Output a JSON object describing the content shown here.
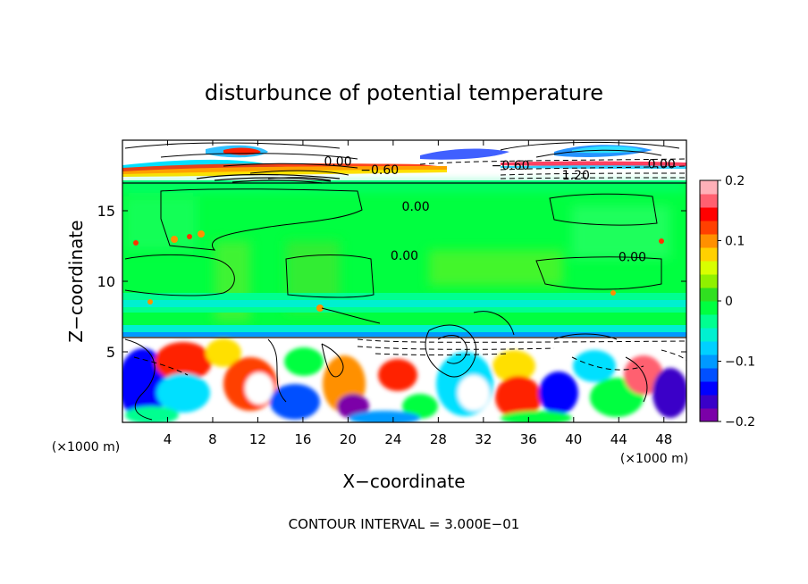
{
  "chart_data": {
    "type": "heatmap",
    "title": "disturbunce of potential temperature",
    "xlabel": "X−coordinate",
    "ylabel": "Z−coordinate",
    "x_unit": "(×1000 m)",
    "x_unit_right": "(×1000 m)",
    "xlim": [
      0,
      50
    ],
    "ylim": [
      0,
      20
    ],
    "x_ticks": [
      4,
      8,
      12,
      16,
      20,
      24,
      28,
      32,
      36,
      40,
      44,
      48
    ],
    "y_ticks": [
      5,
      10,
      15
    ],
    "colorbar": {
      "range": [
        -0.2,
        0.2
      ],
      "ticks": [
        {
          "value": 0.2,
          "label": "0.2"
        },
        {
          "value": 0.1,
          "label": "0.1"
        },
        {
          "value": 0,
          "label": "0"
        },
        {
          "value": -0.1,
          "label": "−0.1"
        },
        {
          "value": -0.2,
          "label": "−0.2"
        }
      ],
      "colors": [
        "#7b00a8",
        "#3a00c8",
        "#0000ff",
        "#0050ff",
        "#0099ff",
        "#00d0ff",
        "#00f0d0",
        "#00ff90",
        "#00ff40",
        "#30e020",
        "#90f000",
        "#d8ff00",
        "#ffd000",
        "#ff9000",
        "#ff4000",
        "#ff0000",
        "#ff6070",
        "#ffb0b8"
      ]
    },
    "contour_labels": [
      {
        "text": "0.00",
        "x": 19.1,
        "y": 18.4
      },
      {
        "text": "−0.60",
        "x": 22.8,
        "y": 17.8
      },
      {
        "text": "−0.60",
        "x": 34.4,
        "y": 18.1
      },
      {
        "text": "1.20",
        "x": 40.2,
        "y": 17.4
      },
      {
        "text": "0.00",
        "x": 47.8,
        "y": 18.2
      },
      {
        "text": "0.00",
        "x": 26.0,
        "y": 15.2
      },
      {
        "text": "0.00",
        "x": 25.0,
        "y": 11.7
      },
      {
        "text": "0.00",
        "x": 45.2,
        "y": 11.6
      }
    ],
    "contour_interval_text": "CONTOUR INTERVAL = 3.000E−01"
  }
}
